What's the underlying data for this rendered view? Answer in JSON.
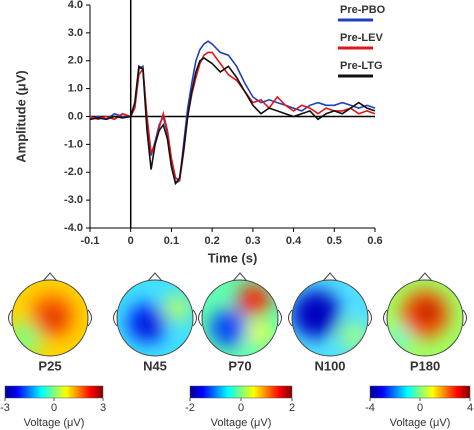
{
  "chart_data": {
    "type": "line",
    "xlabel": "Time (s)",
    "ylabel": "Amplitude (μV)",
    "xlim": [
      -0.1,
      0.6
    ],
    "ylim": [
      -4,
      4
    ],
    "xticks": [
      -0.1,
      0,
      0.1,
      0.2,
      0.3,
      0.4,
      0.5,
      0.6
    ],
    "yticks": [
      {
        "value": 4,
        "label": "4.0"
      },
      {
        "value": 3,
        "label": "3.0"
      },
      {
        "value": 2,
        "label": "2.0"
      },
      {
        "value": 1,
        "label": "1.0"
      },
      {
        "value": 0,
        "label": "0.0"
      },
      {
        "value": -1,
        "label": "-1.0"
      },
      {
        "value": -2,
        "label": "-2.0"
      },
      {
        "value": -3,
        "label": "-3.0"
      },
      {
        "value": -4,
        "label": "-4.0"
      }
    ],
    "x": [
      -0.1,
      -0.08,
      -0.06,
      -0.04,
      -0.02,
      0,
      0.01,
      0.02,
      0.03,
      0.04,
      0.05,
      0.06,
      0.07,
      0.08,
      0.09,
      0.1,
      0.11,
      0.12,
      0.13,
      0.14,
      0.15,
      0.16,
      0.17,
      0.18,
      0.19,
      0.2,
      0.22,
      0.24,
      0.26,
      0.28,
      0.3,
      0.32,
      0.34,
      0.36,
      0.38,
      0.4,
      0.42,
      0.44,
      0.46,
      0.48,
      0.5,
      0.52,
      0.54,
      0.56,
      0.58,
      0.6
    ],
    "series": [
      {
        "name": "Pre-PBO",
        "color": "#1f3fbf",
        "values": [
          -0.1,
          0,
          -0.1,
          0.1,
          0,
          0,
          0.4,
          1.7,
          1.8,
          -0.2,
          -1.4,
          -0.9,
          -0.3,
          0,
          -0.6,
          -1.6,
          -2.4,
          -2.3,
          -1.0,
          0.3,
          1.2,
          2.0,
          2.4,
          2.6,
          2.7,
          2.6,
          2.3,
          2.2,
          1.8,
          1.2,
          0.7,
          0.5,
          0.6,
          0.5,
          0.4,
          0.3,
          0.2,
          0.4,
          0.5,
          0.4,
          0.4,
          0.5,
          0.4,
          0.3,
          0.4,
          0.3
        ]
      },
      {
        "name": "Pre-LEV",
        "color": "#e0161b",
        "values": [
          0,
          -0.1,
          0,
          -0.1,
          0.1,
          0,
          0.3,
          1.5,
          1.7,
          0,
          -1.3,
          -1.0,
          -0.4,
          0.1,
          -0.5,
          -1.5,
          -2.2,
          -2.3,
          -1.3,
          0,
          0.8,
          1.4,
          1.9,
          2.2,
          2.3,
          2.3,
          1.9,
          1.5,
          1.3,
          0.9,
          0.5,
          0.6,
          0.3,
          0.7,
          0.4,
          0.2,
          0.4,
          0.3,
          0.1,
          0.3,
          0.2,
          0.2,
          0.3,
          0.1,
          0.2,
          0.1
        ]
      },
      {
        "name": "Pre-LTG",
        "color": "#111111",
        "values": [
          -0.1,
          -0.05,
          -0.1,
          0,
          -0.05,
          0,
          0.5,
          1.8,
          1.7,
          -0.5,
          -1.9,
          -1.0,
          -0.5,
          -0.3,
          -0.8,
          -1.8,
          -2.4,
          -2.2,
          -1.2,
          0,
          0.9,
          1.6,
          2.0,
          2.1,
          2.0,
          1.9,
          1.6,
          1.8,
          1.4,
          0.9,
          0.4,
          0.1,
          0.3,
          0.2,
          0.1,
          0,
          0.1,
          0.2,
          -0.1,
          0.1,
          0.2,
          0.1,
          0.3,
          0.5,
          0.3,
          0.2
        ]
      }
    ]
  },
  "topomaps": {
    "labels": [
      "P25",
      "N45",
      "P70",
      "N100",
      "P180"
    ]
  },
  "colorbars": [
    {
      "lim": [
        -3,
        3
      ],
      "ticks": [
        -3,
        0,
        3
      ],
      "label": "Voltage (μV)"
    },
    {
      "lim": [
        -2,
        2
      ],
      "ticks": [
        -2,
        0,
        2
      ],
      "label": "Voltage (μV)"
    },
    {
      "lim": [
        -4,
        4
      ],
      "ticks": [
        -4,
        0,
        4
      ],
      "label": "Voltage (μV)"
    }
  ]
}
